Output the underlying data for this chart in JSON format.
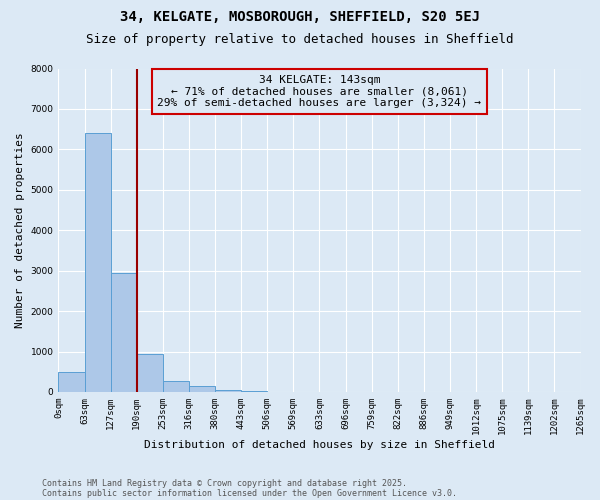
{
  "title": "34, KELGATE, MOSBOROUGH, SHEFFIELD, S20 5EJ",
  "subtitle": "Size of property relative to detached houses in Sheffield",
  "xlabel": "Distribution of detached houses by size in Sheffield",
  "ylabel": "Number of detached properties",
  "footnote1": "Contains HM Land Registry data © Crown copyright and database right 2025.",
  "footnote2": "Contains public sector information licensed under the Open Government Licence v3.0.",
  "bin_labels": [
    "0sqm",
    "63sqm",
    "127sqm",
    "190sqm",
    "253sqm",
    "316sqm",
    "380sqm",
    "443sqm",
    "506sqm",
    "569sqm",
    "633sqm",
    "696sqm",
    "759sqm",
    "822sqm",
    "886sqm",
    "949sqm",
    "1012sqm",
    "1075sqm",
    "1139sqm",
    "1202sqm",
    "1265sqm"
  ],
  "bar_values": [
    500,
    6400,
    2950,
    950,
    280,
    150,
    50,
    20,
    10,
    5,
    3,
    2,
    1,
    1,
    0,
    0,
    0,
    0,
    0,
    0
  ],
  "bar_color": "#adc8e8",
  "bar_edge_color": "#5a9fd4",
  "background_color": "#dce9f5",
  "grid_color": "#ffffff",
  "vline_x": 3,
  "vline_color": "#990000",
  "annotation_text": "34 KELGATE: 143sqm\n← 71% of detached houses are smaller (8,061)\n29% of semi-detached houses are larger (3,324) →",
  "annotation_box_color": "#cc0000",
  "ylim": [
    0,
    8000
  ],
  "yticks": [
    0,
    1000,
    2000,
    3000,
    4000,
    5000,
    6000,
    7000,
    8000
  ],
  "title_fontsize": 10,
  "subtitle_fontsize": 9,
  "ylabel_fontsize": 8,
  "xlabel_fontsize": 8,
  "tick_fontsize": 6.5,
  "footnote_fontsize": 6
}
